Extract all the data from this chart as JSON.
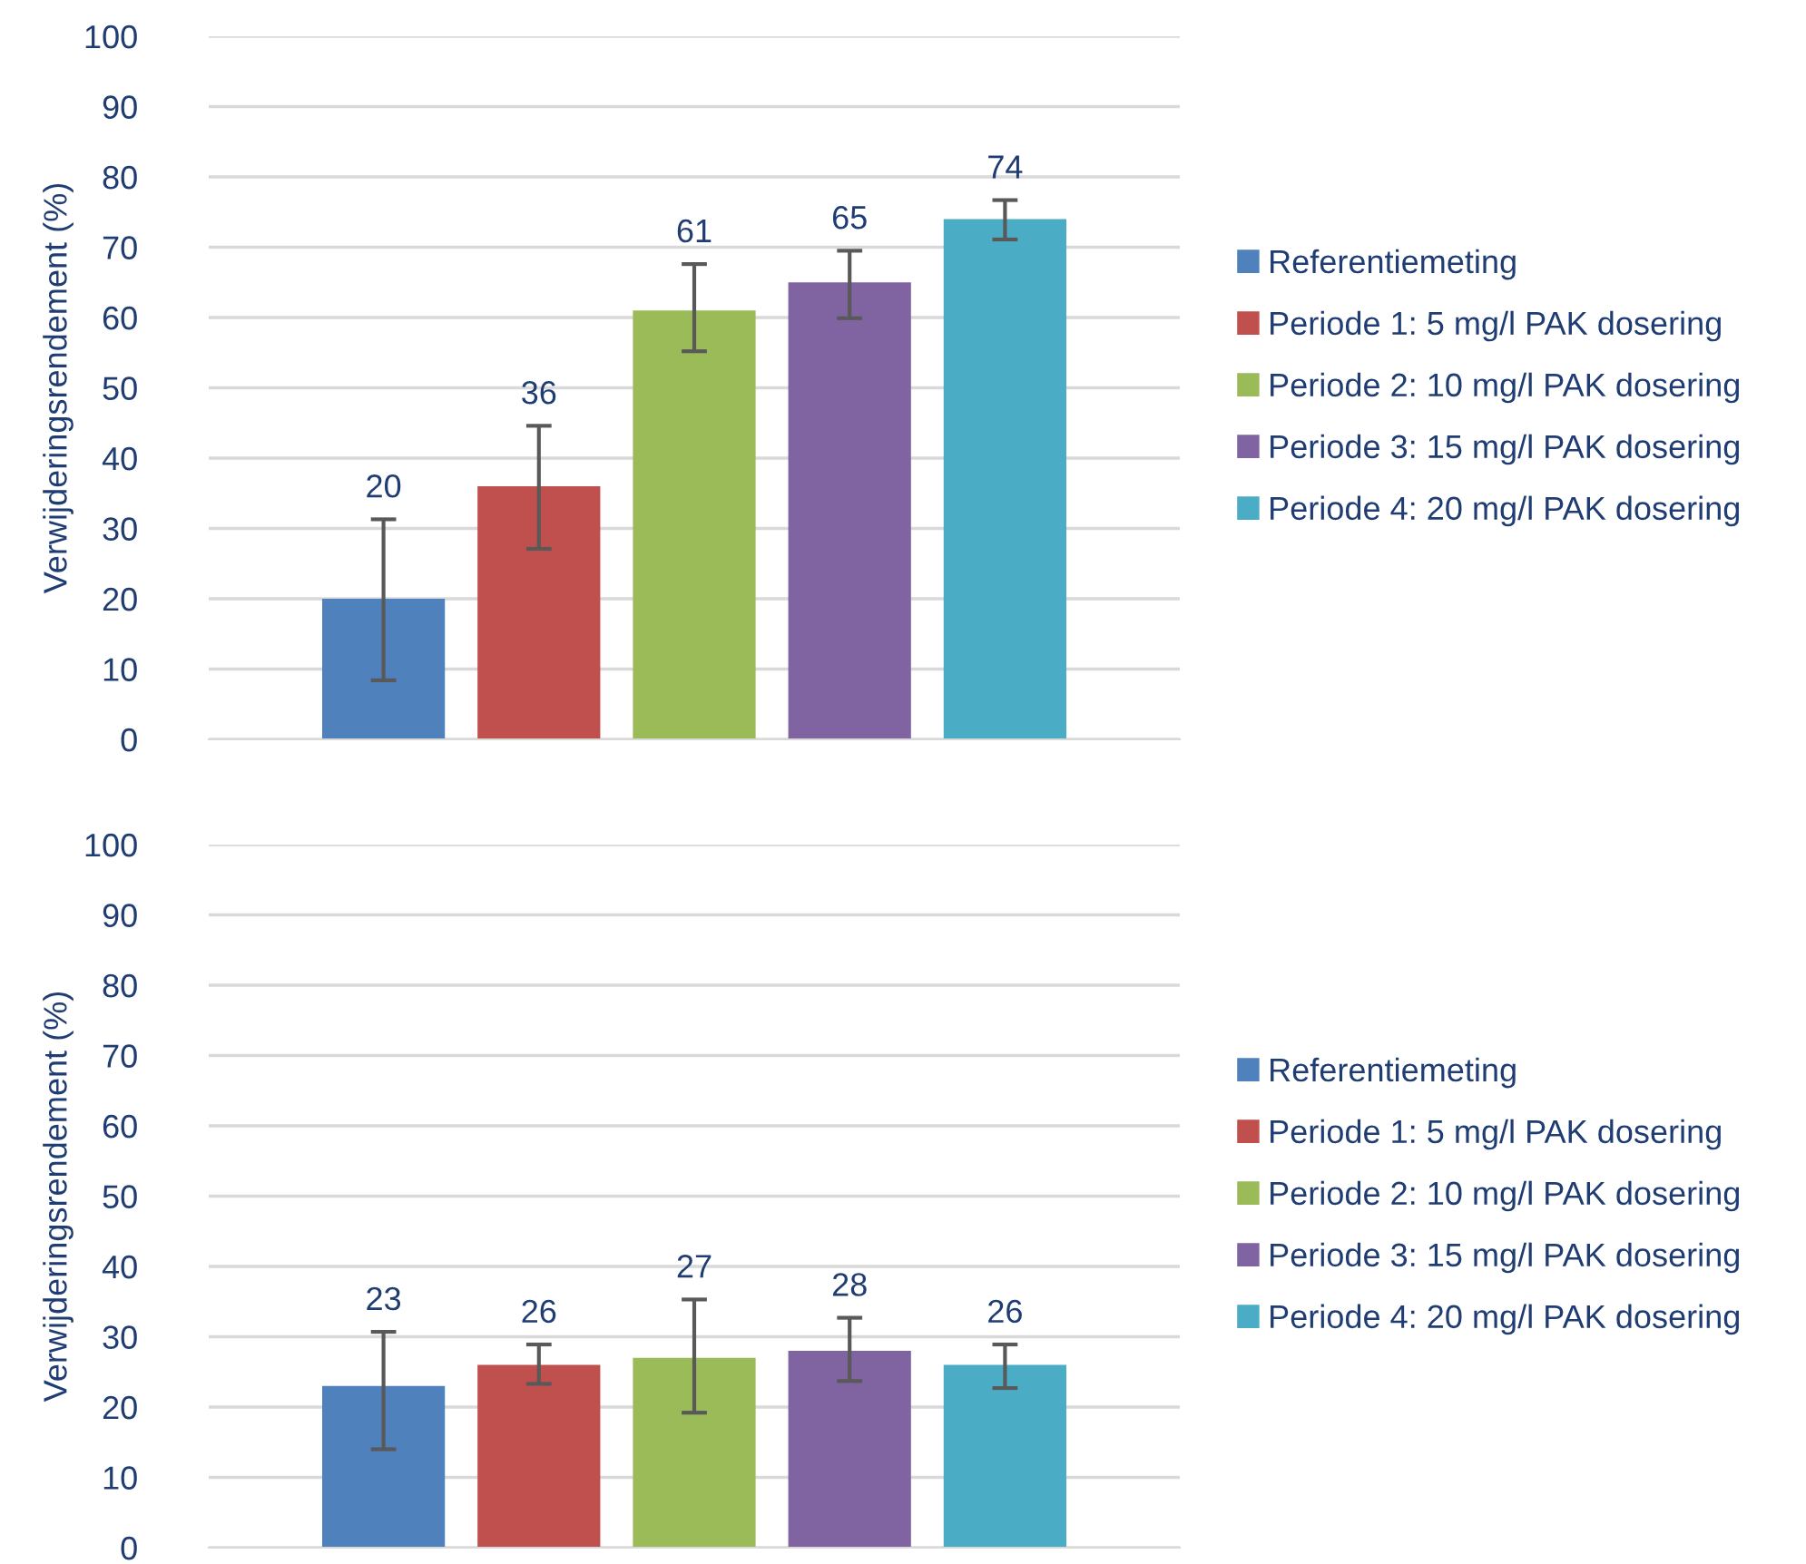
{
  "chart_data": [
    {
      "type": "bar",
      "ylabel": "Verwijderingsrendement (%)",
      "categories": [
        null
      ],
      "ylim": [
        0,
        100
      ],
      "yticks": [
        0,
        10,
        20,
        30,
        40,
        50,
        60,
        70,
        80,
        90,
        100
      ],
      "grid": "y",
      "legend": "right",
      "data_labels": true,
      "series": [
        {
          "name": "Referentiemeting",
          "color": "#4f81bd",
          "values": [
            20
          ],
          "errors": [
            [
              8.4,
              31.3
            ]
          ]
        },
        {
          "name": "Periode 1: 5 mg/l PAK dosering",
          "color": "#c0504d",
          "values": [
            36
          ],
          "errors": [
            [
              27.1,
              44.6
            ]
          ]
        },
        {
          "name": "Periode 2: 10 mg/l PAK dosering",
          "color": "#9bbb59",
          "values": [
            61
          ],
          "errors": [
            [
              55.2,
              67.6
            ]
          ]
        },
        {
          "name": "Periode 3: 15 mg/l PAK dosering",
          "color": "#8064a2",
          "values": [
            65
          ],
          "errors": [
            [
              59.9,
              69.5
            ]
          ]
        },
        {
          "name": "Periode 4: 20 mg/l PAK dosering",
          "color": "#4bacc6",
          "values": [
            74
          ],
          "errors": [
            [
              71.1,
              76.7
            ]
          ]
        }
      ]
    },
    {
      "type": "bar",
      "ylabel": "Verwijderingsrendement (%)",
      "categories": [
        null
      ],
      "ylim": [
        0,
        100
      ],
      "yticks": [
        0,
        10,
        20,
        30,
        40,
        50,
        60,
        70,
        80,
        90,
        100
      ],
      "grid": "y",
      "legend": "right",
      "data_labels": true,
      "series": [
        {
          "name": "Referentiemeting",
          "color": "#4f81bd",
          "values": [
            23
          ],
          "errors": [
            [
              14.0,
              30.7
            ]
          ]
        },
        {
          "name": "Periode 1: 5 mg/l PAK dosering",
          "color": "#c0504d",
          "values": [
            26
          ],
          "errors": [
            [
              23.3,
              28.9
            ]
          ]
        },
        {
          "name": "Periode 2: 10 mg/l PAK dosering",
          "color": "#9bbb59",
          "values": [
            27
          ],
          "errors": [
            [
              19.2,
              35.3
            ]
          ]
        },
        {
          "name": "Periode 3: 15 mg/l PAK dosering",
          "color": "#8064a2",
          "values": [
            28
          ],
          "errors": [
            [
              23.7,
              32.7
            ]
          ]
        },
        {
          "name": "Periode 4: 20 mg/l PAK dosering",
          "color": "#4bacc6",
          "values": [
            26
          ],
          "errors": [
            [
              22.7,
              28.9
            ]
          ]
        }
      ]
    }
  ]
}
